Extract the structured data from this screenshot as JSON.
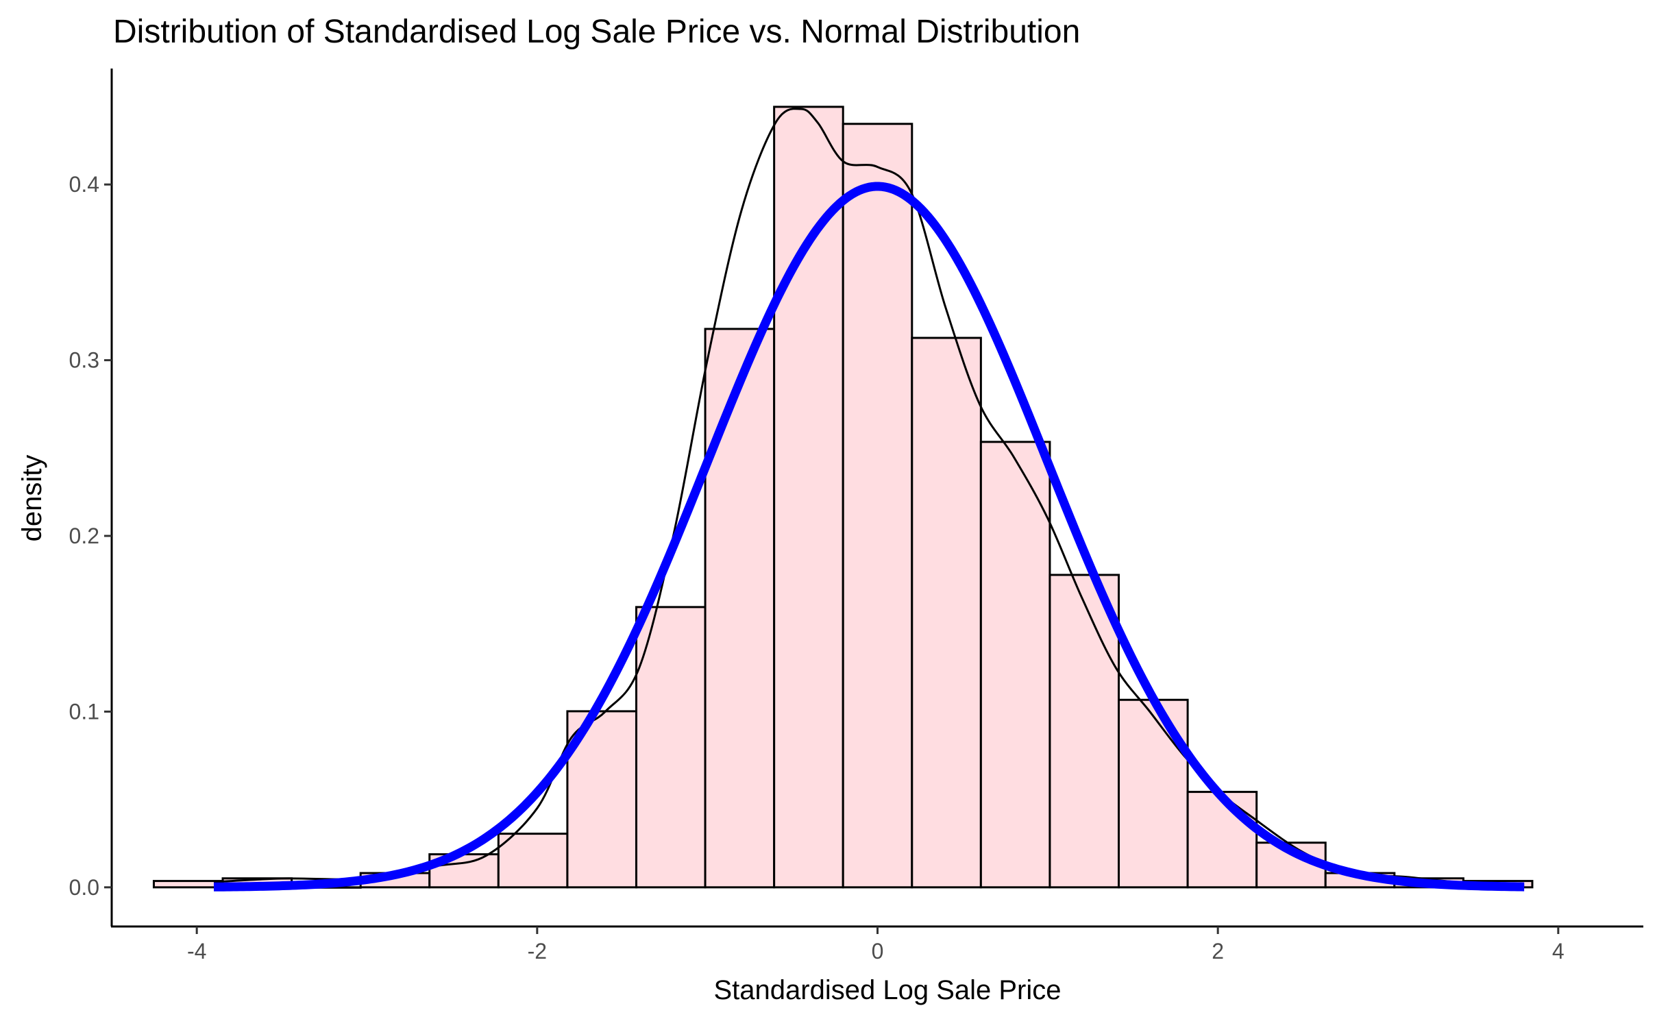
{
  "chart_data": {
    "type": "histogram",
    "title": "Distribution of Standardised Log Sale Price vs. Normal Distribution",
    "xlabel": "Standardised Log Sale Price",
    "ylabel": "density",
    "xlim": [
      -4.5,
      4.5
    ],
    "ylim": [
      -0.0223,
      0.466
    ],
    "x_ticks": [
      -4,
      -2,
      0,
      2,
      4
    ],
    "x_tick_labels": [
      "-4",
      "-2",
      "0",
      "2",
      "4"
    ],
    "y_ticks": [
      0.0,
      0.1,
      0.2,
      0.3,
      0.4
    ],
    "y_tick_labels": [
      "0.0",
      "0.1",
      "0.2",
      "0.3",
      "0.4"
    ],
    "grid": false,
    "histogram": {
      "bin_width": 0.405,
      "bin_centers": [
        -4.05,
        -3.645,
        -3.24,
        -2.835,
        -2.43,
        -2.025,
        -1.62,
        -1.215,
        -0.81,
        -0.405,
        0.0,
        0.405,
        0.81,
        1.215,
        1.62,
        2.025,
        2.43,
        2.835,
        3.24,
        3.645
      ],
      "densities": [
        0.0036,
        0.0051,
        0.0,
        0.0081,
        0.0188,
        0.0305,
        0.1002,
        0.1595,
        0.3178,
        0.4442,
        0.4345,
        0.3127,
        0.2535,
        0.1778,
        0.1067,
        0.0543,
        0.0254,
        0.0081,
        0.0051,
        0.0036
      ],
      "fill": "#ffdde1",
      "stroke": "#000000"
    },
    "density_curve": {
      "x": [
        -3.9,
        -3.5,
        -3.0,
        -2.6,
        -2.3,
        -2.0,
        -1.8,
        -1.6,
        -1.4,
        -1.2,
        -1.0,
        -0.8,
        -0.6,
        -0.45,
        -0.35,
        -0.2,
        0.0,
        0.2,
        0.4,
        0.6,
        0.8,
        1.0,
        1.2,
        1.4,
        1.6,
        1.8,
        2.0,
        2.2,
        2.5,
        2.8,
        3.1,
        3.4,
        3.8
      ],
      "y": [
        0.003,
        0.005,
        0.005,
        0.012,
        0.018,
        0.045,
        0.085,
        0.1,
        0.125,
        0.2,
        0.3,
        0.385,
        0.435,
        0.443,
        0.435,
        0.413,
        0.41,
        0.395,
        0.33,
        0.275,
        0.245,
        0.21,
        0.165,
        0.125,
        0.1,
        0.075,
        0.055,
        0.04,
        0.02,
        0.008,
        0.006,
        0.003,
        0.001
      ],
      "stroke": "#000000"
    },
    "normal_curve": {
      "mean": 0,
      "sd": 1,
      "x_range": [
        -3.9,
        3.8
      ],
      "stroke": "#0000ff"
    }
  }
}
